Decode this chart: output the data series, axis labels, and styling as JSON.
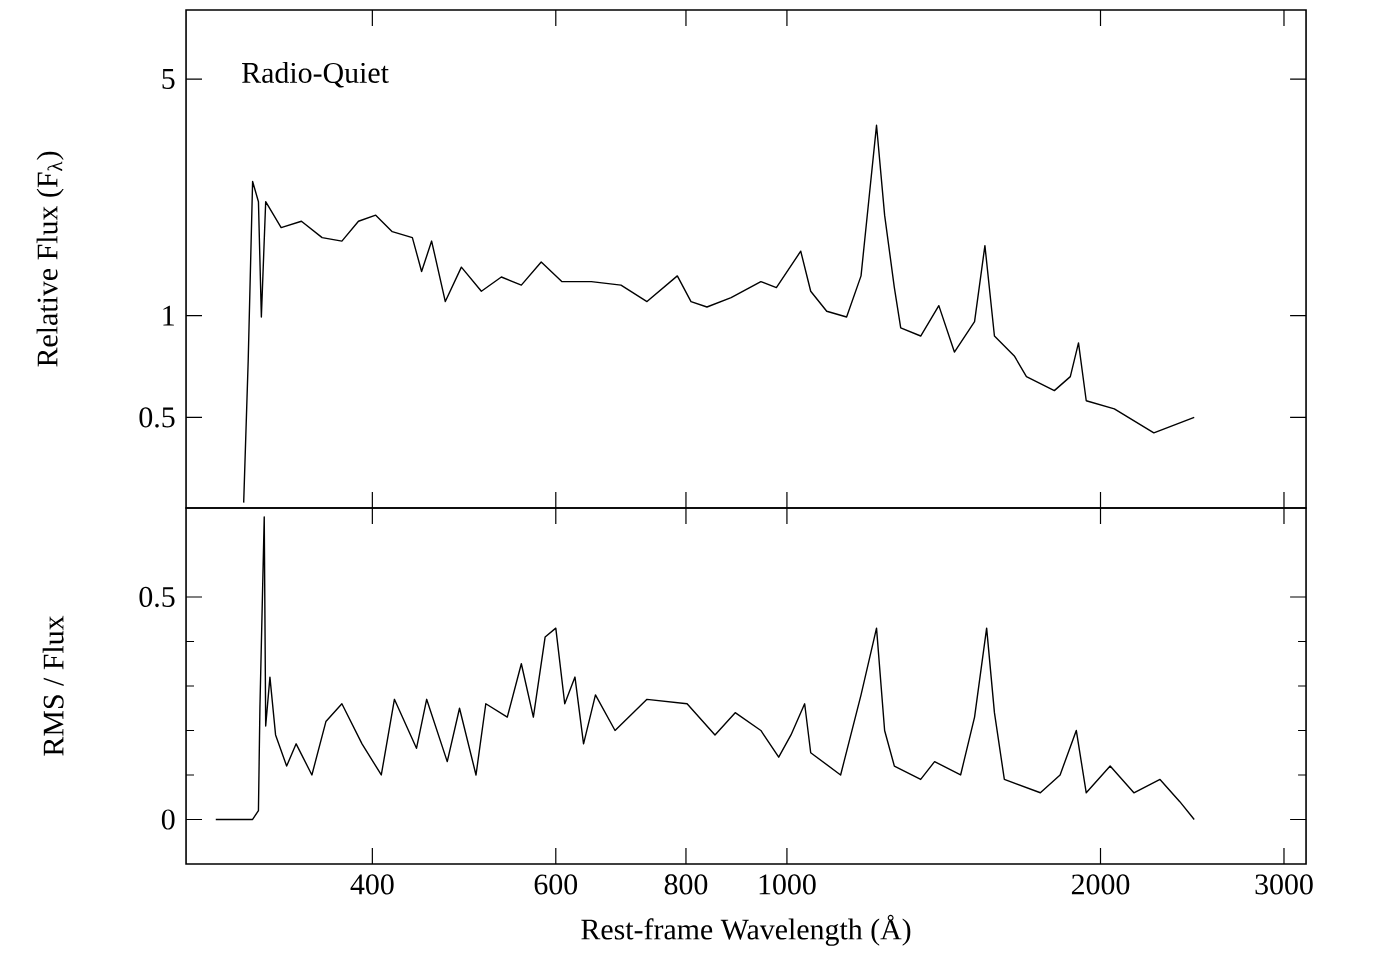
{
  "chart_data": [
    {
      "type": "line",
      "ylabel": "Relative Flux (F$_{λ}$)",
      "annotations": [
        "Radio-Quiet"
      ],
      "log": "xy",
      "tick_labels": "y",
      "xlim": [
        265,
        3150
      ],
      "xticks": [
        400,
        600,
        800,
        1000,
        2000,
        3000
      ],
      "ylim": [
        0.27,
        8
      ],
      "yticks": [
        0.5,
        1,
        5
      ],
      "marker": "none",
      "line_style": "solid",
      "series": [
        {
          "color": "#000000",
          "x": [
            301,
            304,
            307,
            311,
            313,
            316,
            327,
            342,
            358,
            374,
            388,
            403,
            418,
            437,
            446,
            456,
            470,
            487,
            509,
            532,
            556,
            581,
            608,
            649,
            693,
            734,
            785,
            809,
            838,
            884,
            944,
            977,
            1031,
            1054,
            1092,
            1141,
            1178,
            1198,
            1219,
            1241,
            1268,
            1286,
            1344,
            1399,
            1448,
            1514,
            1549,
            1582,
            1653,
            1698,
            1806,
            1871,
            1905,
            1938,
            2062,
            2250,
            2460
          ],
          "values": [
            0.28,
            0.73,
            2.49,
            2.17,
            0.99,
            2.17,
            1.82,
            1.9,
            1.7,
            1.66,
            1.9,
            1.98,
            1.77,
            1.7,
            1.35,
            1.66,
            1.1,
            1.39,
            1.18,
            1.3,
            1.23,
            1.44,
            1.26,
            1.26,
            1.23,
            1.1,
            1.31,
            1.1,
            1.06,
            1.13,
            1.26,
            1.21,
            1.55,
            1.18,
            1.03,
            0.99,
            1.31,
            2.17,
            3.65,
            1.98,
            1.21,
            0.92,
            0.87,
            1.07,
            0.78,
            0.96,
            1.61,
            0.87,
            0.76,
            0.66,
            0.6,
            0.66,
            0.83,
            0.56,
            0.53,
            0.45,
            0.5
          ]
        }
      ]
    },
    {
      "type": "line",
      "xlabel": "Rest-frame Wavelength (Å)",
      "ylabel": "RMS / Flux",
      "log": "x",
      "xlim": [
        265,
        3150
      ],
      "xticks": [
        400,
        600,
        800,
        1000,
        2000,
        3000
      ],
      "ylim": [
        -0.1,
        0.7
      ],
      "yticks": [
        0,
        0.5
      ],
      "marker": "none",
      "line_style": "solid",
      "series": [
        {
          "color": "#000000",
          "x": [
            283,
            307,
            311,
            312,
            315,
            316,
            319,
            323,
            331,
            338,
            350,
            361,
            374,
            391,
            408,
            420,
            441,
            451,
            472,
            485,
            503,
            514,
            539,
            556,
            571,
            586,
            600,
            612,
            626,
            638,
            655,
            684,
            734,
            802,
            853,
            892,
            944,
            982,
            1009,
            1040,
            1054,
            1126,
            1178,
            1219,
            1241,
            1268,
            1344,
            1386,
            1468,
            1514,
            1555,
            1582,
            1617,
            1751,
            1829,
            1896,
            1938,
            2043,
            2153,
            2281,
            2383,
            2460
          ],
          "values": [
            0,
            0,
            0.02,
            0.25,
            0.68,
            0.21,
            0.32,
            0.19,
            0.12,
            0.17,
            0.1,
            0.22,
            0.26,
            0.17,
            0.1,
            0.27,
            0.16,
            0.27,
            0.13,
            0.25,
            0.1,
            0.26,
            0.23,
            0.35,
            0.23,
            0.41,
            0.43,
            0.26,
            0.32,
            0.17,
            0.28,
            0.2,
            0.27,
            0.26,
            0.19,
            0.24,
            0.2,
            0.14,
            0.19,
            0.26,
            0.15,
            0.1,
            0.28,
            0.43,
            0.2,
            0.12,
            0.09,
            0.13,
            0.1,
            0.23,
            0.43,
            0.24,
            0.09,
            0.06,
            0.1,
            0.2,
            0.06,
            0.12,
            0.06,
            0.09,
            0.04,
            0
          ]
        }
      ]
    }
  ]
}
